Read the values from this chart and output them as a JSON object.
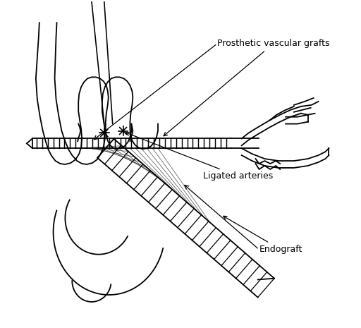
{
  "title": "",
  "background_color": "#ffffff",
  "line_color": "#000000",
  "label_prosthetic": "Prosthetic vascular grafts",
  "label_ligated": "Ligated arteries",
  "label_endograft": "Endograft",
  "label_fontsize": 9,
  "figsize": [
    5.12,
    4.65
  ],
  "dpi": 100
}
